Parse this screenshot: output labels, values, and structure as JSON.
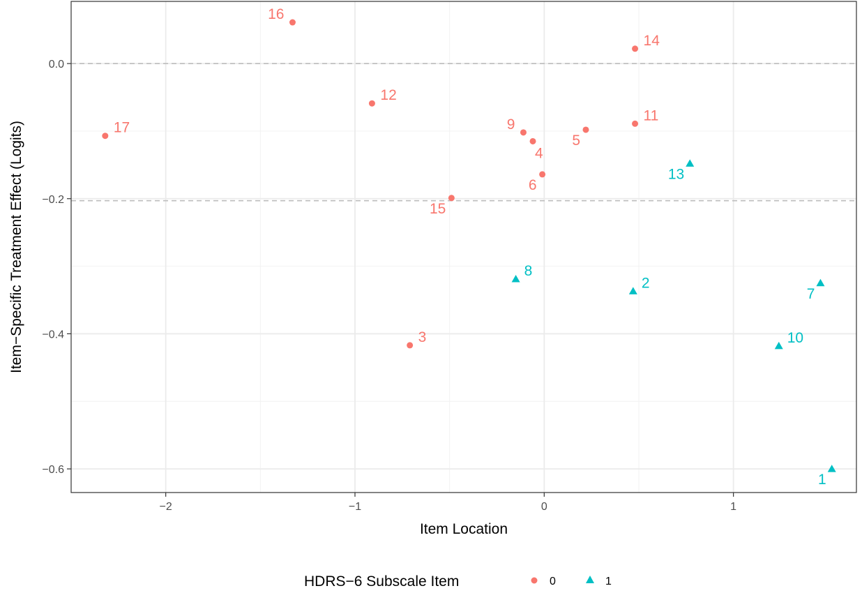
{
  "chart_data": {
    "type": "scatter",
    "xlabel": "Item Location",
    "ylabel": "Item−Specific Treatment Effect (Logits)",
    "xlim": [
      -2.5,
      1.65
    ],
    "ylim": [
      -0.635,
      0.092
    ],
    "x_ticks": [
      -2,
      -1,
      0,
      1
    ],
    "x_tick_labels": [
      "−2",
      "−1",
      "0",
      "1"
    ],
    "y_ticks": [
      -0.6,
      -0.4,
      -0.2,
      0.0
    ],
    "y_tick_labels": [
      "−0.6",
      "−0.4",
      "−0.2",
      "0.0"
    ],
    "grid": true,
    "reference_lines": [
      0.0,
      -0.203
    ],
    "legend": {
      "title": "HDRS−6 Subscale Item",
      "position": "bottom",
      "entries": [
        {
          "label": "0",
          "color": "#F8766D",
          "shape": "circle"
        },
        {
          "label": "1",
          "color": "#00BFC4",
          "shape": "triangle"
        }
      ]
    },
    "series": [
      {
        "name": "0",
        "color": "#F8766D",
        "shape": "circle",
        "points": [
          {
            "label": "16",
            "x": -1.33,
            "y": 0.061,
            "label_pos": "left"
          },
          {
            "label": "14",
            "x": 0.48,
            "y": 0.022,
            "label_pos": "right"
          },
          {
            "label": "12",
            "x": -0.91,
            "y": -0.059,
            "label_pos": "right"
          },
          {
            "label": "17",
            "x": -2.32,
            "y": -0.107,
            "label_pos": "right"
          },
          {
            "label": "11",
            "x": 0.48,
            "y": -0.089,
            "label_pos": "right"
          },
          {
            "label": "9",
            "x": -0.11,
            "y": -0.102,
            "label_pos": "left"
          },
          {
            "label": "5",
            "x": 0.22,
            "y": -0.098,
            "label_pos": "left-below"
          },
          {
            "label": "4",
            "x": -0.06,
            "y": -0.115,
            "label_pos": "right-below"
          },
          {
            "label": "6",
            "x": -0.01,
            "y": -0.164,
            "label_pos": "left-below"
          },
          {
            "label": "15",
            "x": -0.49,
            "y": -0.199,
            "label_pos": "left-below"
          },
          {
            "label": "3",
            "x": -0.71,
            "y": -0.417,
            "label_pos": "right"
          }
        ]
      },
      {
        "name": "1",
        "color": "#00BFC4",
        "shape": "triangle",
        "points": [
          {
            "label": "13",
            "x": 0.77,
            "y": -0.148,
            "label_pos": "left-below"
          },
          {
            "label": "8",
            "x": -0.15,
            "y": -0.319,
            "label_pos": "right"
          },
          {
            "label": "2",
            "x": 0.47,
            "y": -0.337,
            "label_pos": "right"
          },
          {
            "label": "7",
            "x": 1.46,
            "y": -0.325,
            "label_pos": "left-below"
          },
          {
            "label": "10",
            "x": 1.24,
            "y": -0.418,
            "label_pos": "right"
          },
          {
            "label": "1",
            "x": 1.52,
            "y": -0.6,
            "label_pos": "left-below"
          }
        ]
      }
    ]
  }
}
